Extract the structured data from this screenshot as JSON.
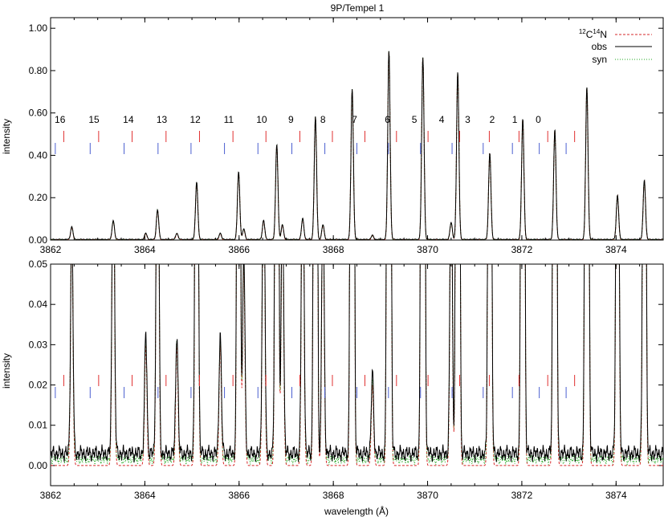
{
  "chart_data": [
    {
      "type": "line",
      "title": "9P/Tempel 1",
      "xlabel": "",
      "ylabel": "intensity",
      "xlim": [
        3862,
        3875
      ],
      "ylim": [
        0,
        1.05
      ],
      "x_ticks": [
        "3862",
        "3864",
        "3866",
        "3868",
        "3870",
        "3872",
        "3874"
      ],
      "y_ticks": [
        "0.00",
        "0.20",
        "0.40",
        "0.60",
        "0.80",
        "1.00"
      ],
      "legend": {
        "position": "top-right",
        "entries": [
          {
            "pre": "12",
            "a": "C",
            "mid": "14",
            "b": "N",
            "style": "dashed",
            "color": "#d62728"
          },
          {
            "label": "obs",
            "style": "solid",
            "color": "#000000"
          },
          {
            "label": "syn",
            "style": "dotted",
            "color": "#22aa22"
          }
        ]
      },
      "line_numbers": [
        "16",
        "15",
        "14",
        "13",
        "12",
        "11",
        "10",
        "9",
        "8",
        "7",
        "6",
        "5",
        "4",
        "3",
        "2",
        "1",
        "0"
      ],
      "line_number_x": [
        3862.45,
        3863.17,
        3863.9,
        3864.61,
        3865.32,
        3866.03,
        3866.73,
        3867.35,
        3868.03,
        3868.7,
        3869.4,
        3869.97,
        3870.55,
        3871.1,
        3871.62,
        3872.1,
        3872.6
      ],
      "marker_red_x": [
        3862.28,
        3863.02,
        3863.73,
        3864.45,
        3865.16,
        3865.87,
        3866.57,
        3867.29,
        3867.98,
        3868.67,
        3869.34,
        3870.01,
        3870.68,
        3871.31,
        3871.94,
        3872.55,
        3873.12
      ],
      "marker_blue_x": [
        3862.1,
        3862.84,
        3863.56,
        3864.28,
        3864.98,
        3865.69,
        3866.4,
        3867.12,
        3867.82,
        3868.5,
        3869.17,
        3869.85,
        3870.52,
        3871.18,
        3871.8,
        3872.37,
        3872.94
      ],
      "peaks": [
        {
          "x": 3862.45,
          "y": 0.06
        },
        {
          "x": 3863.33,
          "y": 0.09
        },
        {
          "x": 3864.02,
          "y": 0.03
        },
        {
          "x": 3864.27,
          "y": 0.14
        },
        {
          "x": 3864.68,
          "y": 0.03
        },
        {
          "x": 3865.1,
          "y": 0.27
        },
        {
          "x": 3865.6,
          "y": 0.03
        },
        {
          "x": 3865.99,
          "y": 0.32
        },
        {
          "x": 3866.1,
          "y": 0.05
        },
        {
          "x": 3866.52,
          "y": 0.09
        },
        {
          "x": 3866.8,
          "y": 0.45
        },
        {
          "x": 3866.92,
          "y": 0.07
        },
        {
          "x": 3867.35,
          "y": 0.1
        },
        {
          "x": 3867.62,
          "y": 0.58
        },
        {
          "x": 3867.78,
          "y": 0.07
        },
        {
          "x": 3868.4,
          "y": 0.71
        },
        {
          "x": 3868.83,
          "y": 0.02
        },
        {
          "x": 3869.18,
          "y": 0.89
        },
        {
          "x": 3869.9,
          "y": 0.86
        },
        {
          "x": 3870.5,
          "y": 0.08
        },
        {
          "x": 3870.64,
          "y": 0.79
        },
        {
          "x": 3871.32,
          "y": 0.41
        },
        {
          "x": 3872.02,
          "y": 0.57
        },
        {
          "x": 3872.7,
          "y": 0.52
        },
        {
          "x": 3873.38,
          "y": 0.72
        },
        {
          "x": 3874.03,
          "y": 0.21
        },
        {
          "x": 3874.6,
          "y": 0.28
        }
      ],
      "series": [
        {
          "name": "12C14N",
          "values_from": "peaks",
          "offset": 0
        },
        {
          "name": "obs",
          "values_from": "peaks",
          "offset": 0.003
        },
        {
          "name": "syn",
          "values_from": "peaks",
          "offset": 0.002
        }
      ]
    },
    {
      "type": "line",
      "title": "",
      "xlabel": "wavelength (Å)",
      "ylabel": "intensity",
      "xlim": [
        3862,
        3875
      ],
      "ylim": [
        -0.005,
        0.05
      ],
      "x_ticks": [
        "3862",
        "3864",
        "3866",
        "3868",
        "3870",
        "3872",
        "3874"
      ],
      "y_ticks": [
        "0.00",
        "0.01",
        "0.02",
        "0.03",
        "0.04",
        "0.05"
      ],
      "note": "zoom of the same spectra; strong peaks clipped at 0.05",
      "marker_red_x": [
        3862.28,
        3863.02,
        3863.73,
        3864.45,
        3865.16,
        3865.87,
        3866.57,
        3867.29,
        3867.98,
        3868.67,
        3869.34,
        3870.01,
        3870.68,
        3871.31,
        3871.94,
        3872.55,
        3873.12
      ],
      "marker_blue_x": [
        3862.1,
        3862.84,
        3863.56,
        3864.28,
        3864.98,
        3865.69,
        3866.4,
        3867.12,
        3867.82,
        3868.5,
        3869.17,
        3869.85,
        3870.52,
        3871.18,
        3871.8,
        3872.37,
        3872.94
      ]
    }
  ]
}
